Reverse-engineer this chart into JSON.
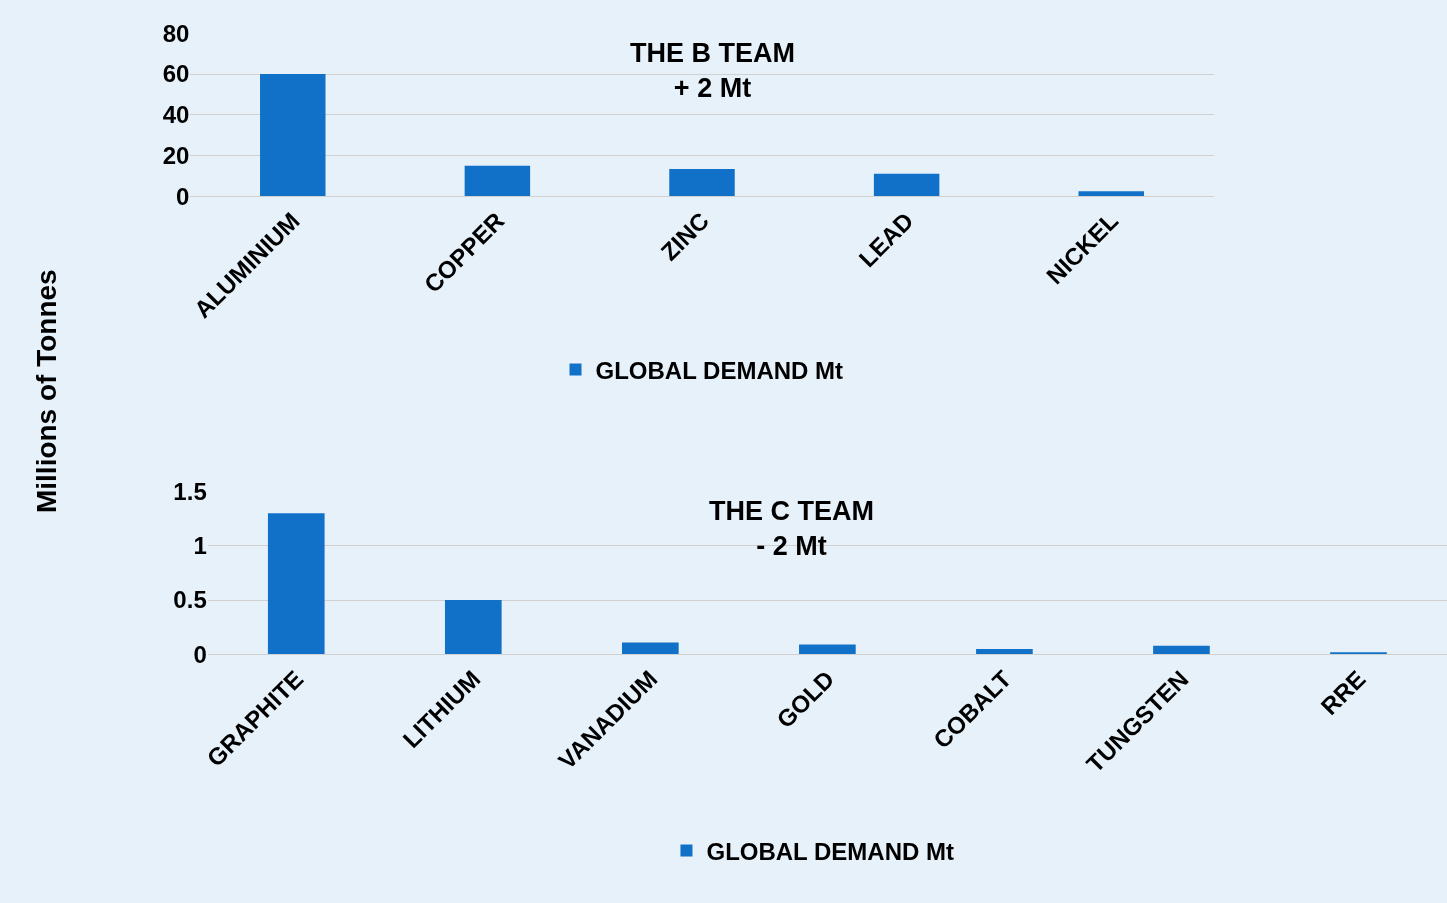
{
  "chart_data": [
    {
      "type": "bar",
      "title": "THE B TEAM",
      "subtitle": "+ 2 Mt",
      "ylabel": "Millions of Tonnes",
      "categories": [
        "ALUMINIUM",
        "COPPER",
        "ZINC",
        "LEAD",
        "NICKEL"
      ],
      "series": [
        {
          "name": "GLOBAL DEMAND Mt",
          "color": "#1170c8",
          "values": [
            60,
            15,
            13.3,
            11,
            2.4
          ]
        }
      ],
      "ylim": [
        0,
        80
      ],
      "yticks": [
        0,
        20,
        40,
        60,
        80
      ],
      "grid": "y",
      "legend": "bottom"
    },
    {
      "type": "bar",
      "title": "THE C TEAM",
      "subtitle": "- 2 Mt",
      "categories": [
        "GRAPHITE",
        "LITHIUM",
        "VANADIUM",
        "GOLD",
        "COBALT",
        "TUNGSTEN",
        "RRE"
      ],
      "series": [
        {
          "name": "GLOBAL DEMAND Mt",
          "color": "#1170c8",
          "values": [
            1.3,
            0.5,
            0.11,
            0.09,
            0.05,
            0.08,
            0.02
          ]
        }
      ],
      "ylim": [
        0,
        1.5
      ],
      "yticks": [
        0,
        0.5,
        1,
        1.5
      ],
      "grid": "y",
      "legend": "bottom"
    }
  ]
}
